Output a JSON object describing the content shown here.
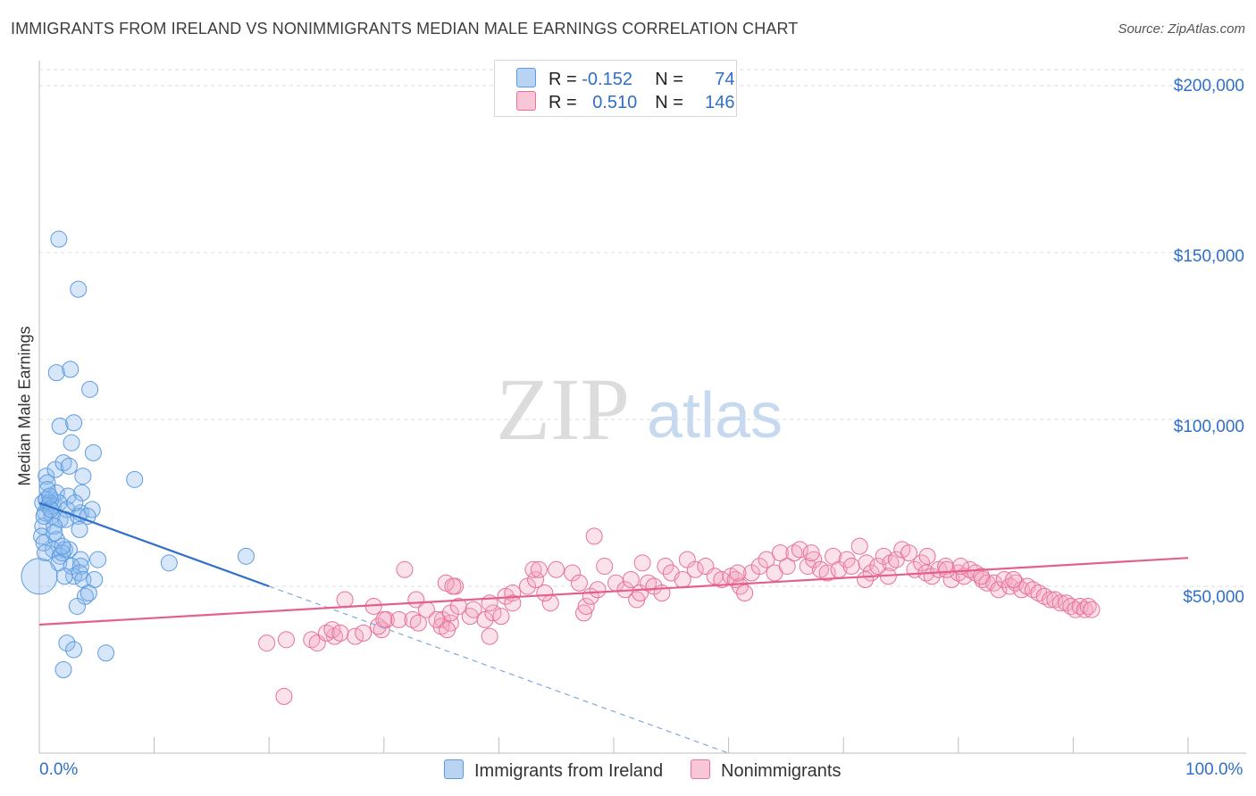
{
  "title": "IMMIGRANTS FROM IRELAND VS NONIMMIGRANTS MEDIAN MALE EARNINGS CORRELATION CHART",
  "source": "Source: ZipAtlas.com",
  "watermark": {
    "zip": "ZIP",
    "atlas": "atlas"
  },
  "legend": {
    "series1": {
      "r_label": "R = ",
      "r_value": "-0.152",
      "n_label": "N = ",
      "n_value": "74"
    },
    "series2": {
      "r_label": "R = ",
      "r_value": "0.510",
      "n_label": "N = ",
      "n_value": "146"
    }
  },
  "colors": {
    "blue": "#5b9be0",
    "blue_line": "#2f6fc9",
    "pink": "#e8709a",
    "pink_line": "#e4608c",
    "label": "#2f6fc9"
  },
  "chart_data": {
    "type": "scatter",
    "title": "IMMIGRANTS FROM IRELAND VS NONIMMIGRANTS MEDIAN MALE EARNINGS CORRELATION CHART",
    "xlabel": "",
    "ylabel": "Median Male Earnings",
    "xlim": [
      0,
      100
    ],
    "ylim": [
      0,
      200000
    ],
    "x_tick_labels": [
      "0.0%",
      "100.0%"
    ],
    "y_tick_labels": [
      "$50,000",
      "$100,000",
      "$150,000",
      "$200,000"
    ],
    "y_ticks": [
      50000,
      100000,
      150000,
      200000
    ],
    "legend_position": "top-center",
    "series": [
      {
        "name": "Immigrants from Ireland",
        "color": "#5b9be0",
        "r": -0.152,
        "n": 74,
        "trend": {
          "x": [
            0,
            20
          ],
          "y": [
            75000,
            50000
          ],
          "dashed_to": [
            60,
            0
          ]
        },
        "points": [
          [
            1.7,
            154000
          ],
          [
            3.4,
            139000
          ],
          [
            1.5,
            114000
          ],
          [
            2.7,
            115000
          ],
          [
            4.4,
            109000
          ],
          [
            1.8,
            98000
          ],
          [
            3.0,
            99000
          ],
          [
            2.8,
            93000
          ],
          [
            4.7,
            90000
          ],
          [
            8.3,
            82000
          ],
          [
            0.6,
            83000
          ],
          [
            0.7,
            81000
          ],
          [
            1.4,
            85000
          ],
          [
            2.1,
            87000
          ],
          [
            2.6,
            86000
          ],
          [
            3.8,
            83000
          ],
          [
            1.0,
            76000
          ],
          [
            1.5,
            78000
          ],
          [
            2.5,
            77000
          ],
          [
            3.7,
            78000
          ],
          [
            0.3,
            75000
          ],
          [
            0.6,
            76000
          ],
          [
            0.8,
            74000
          ],
          [
            0.9,
            75000
          ],
          [
            1.2,
            74000
          ],
          [
            1.7,
            75000
          ],
          [
            2.4,
            73000
          ],
          [
            3.6,
            72000
          ],
          [
            4.6,
            73000
          ],
          [
            0.5,
            72000
          ],
          [
            1.1,
            71000
          ],
          [
            1.8,
            70000
          ],
          [
            2.3,
            70000
          ],
          [
            3.4,
            71000
          ],
          [
            4.2,
            71000
          ],
          [
            0.3,
            68000
          ],
          [
            1.3,
            68000
          ],
          [
            3.5,
            67000
          ],
          [
            0.2,
            65000
          ],
          [
            1.5,
            64000
          ],
          [
            0.4,
            63000
          ],
          [
            1.2,
            61000
          ],
          [
            2.2,
            61000
          ],
          [
            2.6,
            61000
          ],
          [
            0.5,
            60000
          ],
          [
            1.8,
            59000
          ],
          [
            2.0,
            60000
          ],
          [
            3.6,
            58000
          ],
          [
            5.1,
            58000
          ],
          [
            1.7,
            57000
          ],
          [
            2.8,
            56000
          ],
          [
            3.6,
            56000
          ],
          [
            3.0,
            53000
          ],
          [
            3.5,
            54000
          ],
          [
            2.2,
            53000
          ],
          [
            3.8,
            52000
          ],
          [
            4.8,
            52000
          ],
          [
            0.0,
            53000
          ],
          [
            4.0,
            47000
          ],
          [
            4.3,
            48000
          ],
          [
            3.3,
            44000
          ],
          [
            11.3,
            57000
          ],
          [
            18.0,
            59000
          ],
          [
            2.4,
            33000
          ],
          [
            3.0,
            31000
          ],
          [
            5.8,
            30000
          ],
          [
            2.1,
            25000
          ],
          [
            0.4,
            71000
          ],
          [
            1.0,
            73000
          ],
          [
            0.7,
            79000
          ],
          [
            2.0,
            62000
          ],
          [
            1.3,
            66000
          ],
          [
            0.9,
            77000
          ],
          [
            3.1,
            75000
          ]
        ]
      },
      {
        "name": "Nonimmigrants",
        "color": "#e8709a",
        "r": 0.51,
        "n": 146,
        "trend": {
          "x": [
            0,
            100
          ],
          "y": [
            38500,
            58500
          ]
        },
        "points": [
          [
            23.7,
            34000
          ],
          [
            24.2,
            33000
          ],
          [
            25.7,
            35000
          ],
          [
            25.0,
            36000
          ],
          [
            25.5,
            37000
          ],
          [
            26.2,
            36000
          ],
          [
            27.5,
            35000
          ],
          [
            28.2,
            36000
          ],
          [
            29.8,
            37000
          ],
          [
            29.5,
            38000
          ],
          [
            30.2,
            40000
          ],
          [
            30.0,
            40000
          ],
          [
            29.1,
            44000
          ],
          [
            21.5,
            34000
          ],
          [
            31.3,
            40000
          ],
          [
            32.5,
            40000
          ],
          [
            35.1,
            40000
          ],
          [
            33.0,
            39000
          ],
          [
            35.0,
            38000
          ],
          [
            35.8,
            39000
          ],
          [
            35.8,
            42000
          ],
          [
            36.5,
            44000
          ],
          [
            37.5,
            41000
          ],
          [
            37.8,
            43000
          ],
          [
            38.8,
            40000
          ],
          [
            39.5,
            42000
          ],
          [
            40.2,
            41000
          ],
          [
            39.2,
            45000
          ],
          [
            36.2,
            50000
          ],
          [
            35.4,
            51000
          ],
          [
            32.8,
            46000
          ],
          [
            33.7,
            43000
          ],
          [
            34.6,
            40000
          ],
          [
            35.5,
            37000
          ],
          [
            39.2,
            35000
          ],
          [
            40.6,
            47000
          ],
          [
            41.2,
            48000
          ],
          [
            41.2,
            45000
          ],
          [
            42.5,
            50000
          ],
          [
            43.2,
            52000
          ],
          [
            44.5,
            45000
          ],
          [
            43.0,
            55000
          ],
          [
            43.5,
            55000
          ],
          [
            45.0,
            55000
          ],
          [
            46.4,
            54000
          ],
          [
            47.4,
            42000
          ],
          [
            47.6,
            44000
          ],
          [
            48.0,
            47000
          ],
          [
            48.6,
            49000
          ],
          [
            49.2,
            56000
          ],
          [
            48.3,
            65000
          ],
          [
            47.0,
            51000
          ],
          [
            50.2,
            51000
          ],
          [
            51.0,
            49000
          ],
          [
            51.5,
            52000
          ],
          [
            52.0,
            46000
          ],
          [
            52.3,
            48000
          ],
          [
            53.0,
            51000
          ],
          [
            53.5,
            50000
          ],
          [
            54.2,
            48000
          ],
          [
            54.5,
            56000
          ],
          [
            55.0,
            54000
          ],
          [
            56.0,
            52000
          ],
          [
            56.4,
            58000
          ],
          [
            57.1,
            55000
          ],
          [
            58.0,
            56000
          ],
          [
            58.8,
            53000
          ],
          [
            59.4,
            52000
          ],
          [
            60.2,
            53000
          ],
          [
            60.6,
            52000
          ],
          [
            61.0,
            50000
          ],
          [
            61.4,
            48000
          ],
          [
            62.0,
            54000
          ],
          [
            62.7,
            56000
          ],
          [
            63.3,
            58000
          ],
          [
            64.0,
            54000
          ],
          [
            64.5,
            60000
          ],
          [
            65.1,
            56000
          ],
          [
            65.7,
            60000
          ],
          [
            66.2,
            61000
          ],
          [
            66.9,
            56000
          ],
          [
            67.4,
            58000
          ],
          [
            68.0,
            55000
          ],
          [
            68.6,
            54000
          ],
          [
            69.1,
            59000
          ],
          [
            69.6,
            55000
          ],
          [
            70.3,
            58000
          ],
          [
            70.7,
            56000
          ],
          [
            71.4,
            62000
          ],
          [
            72.0,
            57000
          ],
          [
            72.4,
            54000
          ],
          [
            73.0,
            56000
          ],
          [
            73.5,
            59000
          ],
          [
            74.1,
            57000
          ],
          [
            74.6,
            58000
          ],
          [
            75.1,
            61000
          ],
          [
            75.7,
            60000
          ],
          [
            76.2,
            55000
          ],
          [
            76.8,
            57000
          ],
          [
            77.2,
            54000
          ],
          [
            77.7,
            53000
          ],
          [
            78.3,
            55000
          ],
          [
            78.9,
            56000
          ],
          [
            79.4,
            52000
          ],
          [
            80.0,
            54000
          ],
          [
            80.5,
            53000
          ],
          [
            81.0,
            55000
          ],
          [
            81.5,
            54000
          ],
          [
            82.1,
            52000
          ],
          [
            82.5,
            51000
          ],
          [
            83.1,
            51000
          ],
          [
            83.5,
            49000
          ],
          [
            84.0,
            52000
          ],
          [
            84.5,
            50000
          ],
          [
            85.0,
            51000
          ],
          [
            85.5,
            49000
          ],
          [
            86.0,
            50000
          ],
          [
            86.5,
            49000
          ],
          [
            87.0,
            48000
          ],
          [
            87.5,
            47000
          ],
          [
            88.0,
            46000
          ],
          [
            88.4,
            46000
          ],
          [
            88.9,
            45000
          ],
          [
            89.4,
            45000
          ],
          [
            89.8,
            44000
          ],
          [
            90.2,
            43000
          ],
          [
            90.6,
            44000
          ],
          [
            91.0,
            43000
          ],
          [
            91.3,
            44000
          ],
          [
            91.6,
            43000
          ],
          [
            31.8,
            55000
          ],
          [
            36.0,
            50000
          ],
          [
            44.0,
            48000
          ],
          [
            52.5,
            57000
          ],
          [
            60.8,
            54000
          ],
          [
            67.2,
            60000
          ],
          [
            71.9,
            52000
          ],
          [
            73.9,
            53000
          ],
          [
            77.3,
            59000
          ],
          [
            79.0,
            55000
          ],
          [
            80.2,
            56000
          ],
          [
            82.0,
            53000
          ],
          [
            84.8,
            52000
          ],
          [
            19.8,
            33000
          ],
          [
            21.3,
            17000
          ],
          [
            26.6,
            46000
          ]
        ]
      }
    ],
    "x_categories_bottom_legend": [
      "Immigrants from Ireland",
      "Nonimmigrants"
    ]
  }
}
